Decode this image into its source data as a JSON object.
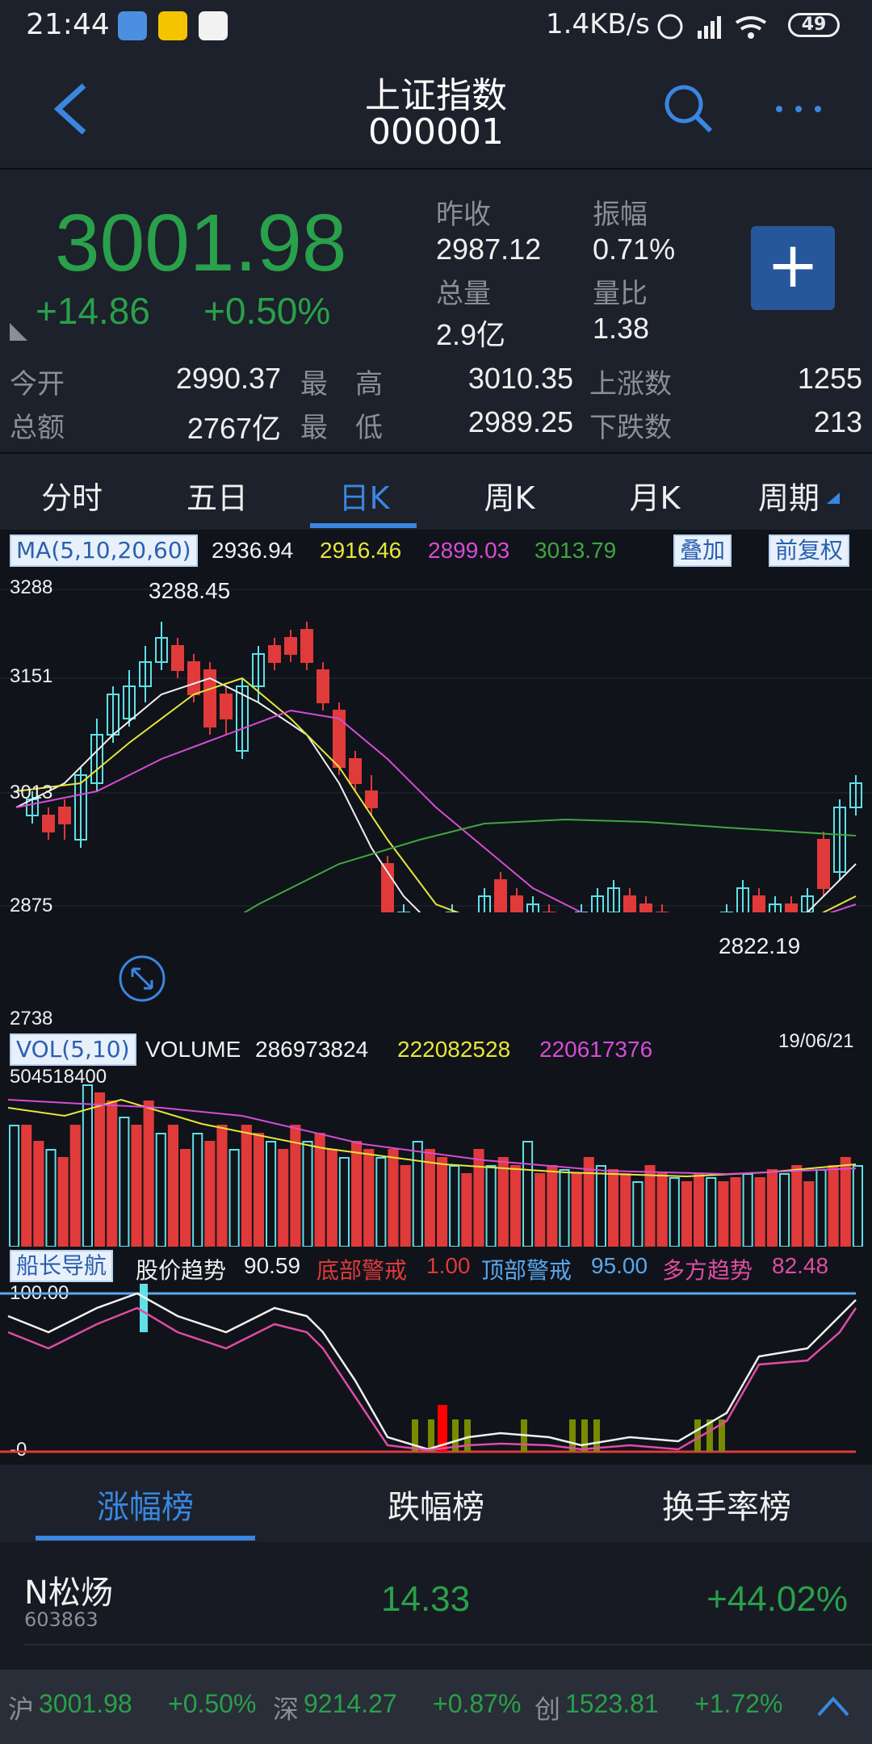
{
  "status": {
    "time": "21:44",
    "speed": "1.4KB/s",
    "battery": "49"
  },
  "header": {
    "title": "上证指数",
    "code": "000001"
  },
  "quote": {
    "price": "3001.98",
    "change": "+14.86",
    "change_pct": "+0.50%",
    "stats": [
      {
        "label": "昨收",
        "value": "2987.12"
      },
      {
        "label": "振幅",
        "value": "0.71%"
      },
      {
        "label": "总量",
        "value": "2.9亿"
      },
      {
        "label": "量比",
        "value": "1.38"
      }
    ],
    "row1": {
      "l1": "今开",
      "v1": "2990.37",
      "l2": "最　高",
      "v2": "3010.35",
      "l3": "上涨数",
      "v3": "1255"
    },
    "row2": {
      "l1": "总额",
      "v1": "2767亿",
      "l2": "最　低",
      "v2": "2989.25",
      "l3": "下跌数",
      "v3": "213"
    },
    "add_label": "+"
  },
  "tabs": [
    "分时",
    "五日",
    "日K",
    "周K",
    "月K",
    "周期"
  ],
  "active_tab": 2,
  "ma": {
    "label": "MA(5,10,20,60)",
    "ma5": "2936.94",
    "ma10": "2916.46",
    "ma20": "2899.03",
    "ma60": "3013.79",
    "overlay": "叠加",
    "adjust": "前复权"
  },
  "kline": {
    "y_ticks": [
      "3288",
      "3151",
      "3013",
      "2875",
      "2738"
    ],
    "high_label": "3288.45",
    "low_label": "2822.19"
  },
  "vol": {
    "label": "VOL(5,10)",
    "name": "VOLUME",
    "value": "286973824",
    "ma5": "222082528",
    "ma10": "220617376",
    "date": "19/06/21",
    "max": "504518400"
  },
  "nav": {
    "label": "船长导航",
    "t1": "股价趋势",
    "v1": "90.59",
    "t2": "底部警戒",
    "v2": "1.00",
    "t3": "顶部警戒",
    "v3": "95.00",
    "t4": "多方趋势",
    "v4": "82.48",
    "top": "100.00",
    "bottom": "-0"
  },
  "rank_tabs": [
    "涨幅榜",
    "跌幅榜",
    "换手率榜"
  ],
  "list": [
    {
      "name": "N松炀",
      "code": "603863",
      "price": "14.33",
      "pct": "+44.02%"
    }
  ],
  "ticker": {
    "sh_label": "沪",
    "sh_val": "3001.98",
    "sh_pct": "+0.50%",
    "sz_label": "深",
    "sz_val": "9214.27",
    "sz_pct": "+0.87%",
    "cy_label": "创",
    "cy_val": "1523.81",
    "cy_pct": "+1.72%"
  },
  "colors": {
    "up": "#e03a3a",
    "down": "#5fe0e6",
    "green": "#29a04a",
    "accent": "#3a86e0"
  }
}
